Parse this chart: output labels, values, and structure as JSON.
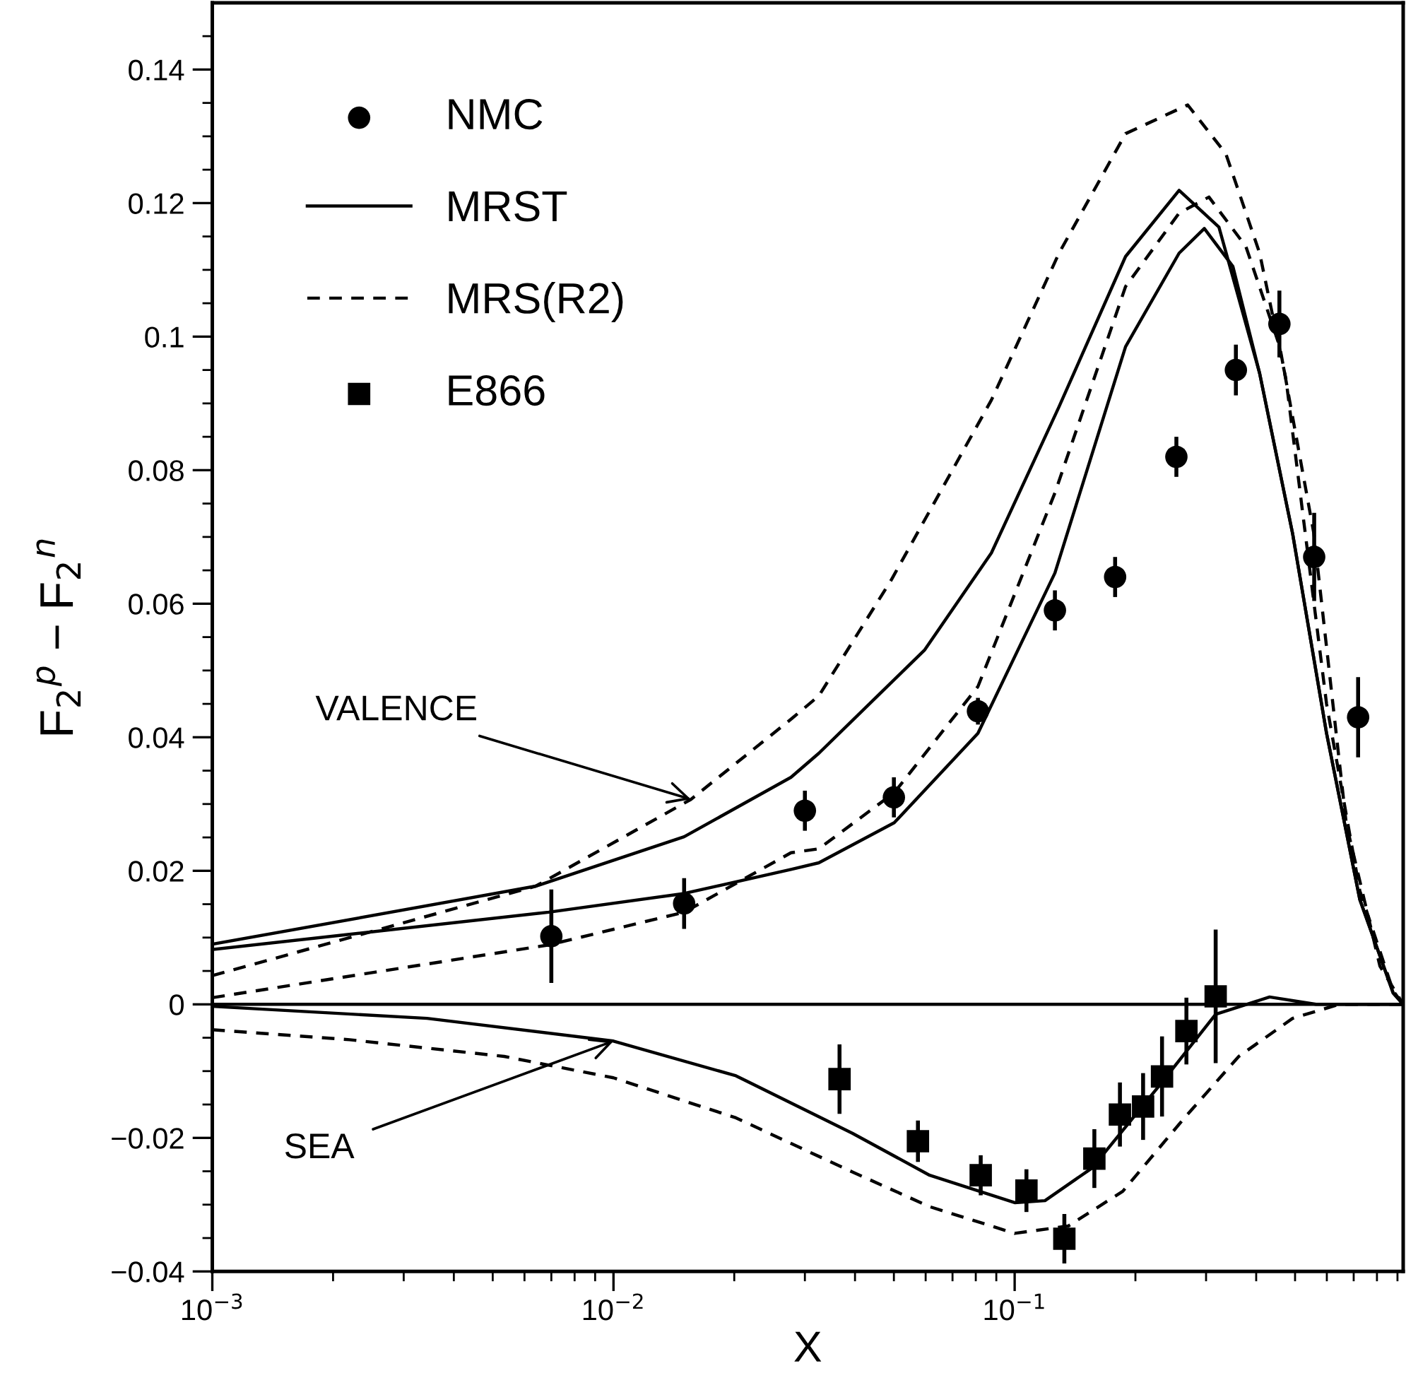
{
  "chart_data": {
    "type": "line",
    "xlabel": "X",
    "ylabel": "F$_{2}$$^{p}$ − F$_{2}$$^{n}$",
    "log": "x",
    "xlim": [
      0.001,
      0.93
    ],
    "ylim": [
      -0.04,
      0.15
    ],
    "xticks": [
      {
        "value": 0.001,
        "label": "10$^{−3}$"
      },
      {
        "value": 0.01,
        "label": "10$^{−2}$"
      },
      {
        "value": 0.1,
        "label": "10$^{−1}$"
      }
    ],
    "yticks": [
      {
        "value": -0.04,
        "label": "−0.04"
      },
      {
        "value": -0.02,
        "label": "−0.02"
      },
      0,
      0.02,
      0.04,
      0.06,
      0.08,
      0.1,
      0.12,
      0.14
    ],
    "grid": false,
    "legend": "top left",
    "ref_lines": [
      {
        "axis": "y",
        "value": 0,
        "color": "#000000",
        "line_style": "solid"
      }
    ],
    "annotations": [
      {
        "text": "VALENCE",
        "x": 0.0156,
        "y": 0.0307
      },
      {
        "text": "SEA",
        "x": 0.01,
        "y": -0.0055
      }
    ],
    "series": [
      {
        "name": "NMC",
        "type": "scatter",
        "marker": "circle",
        "color": "#000000",
        "x": [
          0.007,
          0.015,
          0.03,
          0.05,
          0.081,
          0.126,
          0.178,
          0.253,
          0.356,
          0.457,
          0.558,
          0.718
        ],
        "values": [
          0.0102,
          0.0151,
          0.029,
          0.031,
          0.0439,
          0.059,
          0.064,
          0.082,
          0.095,
          0.1019,
          0.067,
          0.043
        ],
        "errors": [
          0.007,
          0.0038,
          0.003,
          0.003,
          0.002,
          0.003,
          0.003,
          0.003,
          0.0038,
          0.005,
          0.0066,
          0.006
        ]
      },
      {
        "name": "MRST",
        "line_style": "solid",
        "color": "#000000",
        "x": [
          0.001,
          0.0064,
          0.015,
          0.0277,
          0.0325,
          0.0597,
          0.0875,
          0.129,
          0.189,
          0.257,
          0.323,
          0.408,
          0.493,
          0.599,
          0.725,
          0.878,
          0.93
        ],
        "values": [
          0.009,
          0.0177,
          0.0251,
          0.034,
          0.0376,
          0.0531,
          0.0676,
          0.0895,
          0.112,
          0.1219,
          0.1164,
          0.0945,
          0.0705,
          0.0406,
          0.0157,
          0.0017,
          0
        ]
      },
      {
        "line_style": "solid",
        "color": "#000000",
        "x": [
          0.001,
          0.0069,
          0.015,
          0.0277,
          0.0325,
          0.0501,
          0.081,
          0.126,
          0.189,
          0.257,
          0.297,
          0.35,
          0.408,
          0.493,
          0.599,
          0.725,
          0.878,
          0.93
        ],
        "values": [
          0.0082,
          0.0138,
          0.0166,
          0.0202,
          0.0212,
          0.0272,
          0.0406,
          0.0646,
          0.0985,
          0.1125,
          0.1162,
          0.1105,
          0.0945,
          0.0705,
          0.0406,
          0.0157,
          0.0017,
          0
        ]
      },
      {
        "line_style": "solid",
        "color": "#000000",
        "x": [
          0.001,
          0.00343,
          0.01,
          0.0202,
          0.0394,
          0.0614,
          0.1,
          0.119,
          0.156,
          0.232,
          0.317,
          0.432,
          0.564,
          0.93
        ],
        "values": [
          -0.0003,
          -0.0021,
          -0.0055,
          -0.0107,
          -0.0193,
          -0.0256,
          -0.0297,
          -0.0294,
          -0.0245,
          -0.0118,
          -0.0015,
          0.0011,
          0,
          0
        ]
      },
      {
        "name": "MRS(R2)",
        "line_style": "dashed",
        "color": "#000000",
        "x": [
          0.001,
          0.0064,
          0.0156,
          0.0277,
          0.0325,
          0.0493,
          0.0875,
          0.129,
          0.189,
          0.27,
          0.336,
          0.408,
          0.475,
          0.599,
          0.725,
          0.878,
          0.93
        ],
        "values": [
          0.0043,
          0.0177,
          0.0307,
          0.0427,
          0.0462,
          0.0636,
          0.0905,
          0.1125,
          0.1304,
          0.1347,
          0.1274,
          0.1125,
          0.0935,
          0.045,
          0.017,
          0.002,
          0
        ]
      },
      {
        "line_style": "dashed",
        "color": "#000000",
        "x": [
          0.001,
          0.0069,
          0.015,
          0.0277,
          0.0325,
          0.0501,
          0.081,
          0.126,
          0.189,
          0.257,
          0.305,
          0.377,
          0.458,
          0.557,
          0.671,
          0.814,
          0.93
        ],
        "values": [
          0.001,
          0.0089,
          0.0138,
          0.0227,
          0.0233,
          0.0317,
          0.0476,
          0.0766,
          0.1075,
          0.1185,
          0.1209,
          0.1135,
          0.0985,
          0.0705,
          0.027,
          0.0057,
          0
        ]
      },
      {
        "line_style": "dashed",
        "color": "#000000",
        "x": [
          0.001,
          0.0022,
          0.00534,
          0.01,
          0.0202,
          0.0394,
          0.0614,
          0.1,
          0.136,
          0.186,
          0.265,
          0.362,
          0.493,
          0.644,
          0.93
        ],
        "values": [
          -0.0038,
          -0.0053,
          -0.0078,
          -0.011,
          -0.017,
          -0.0251,
          -0.0303,
          -0.0343,
          -0.0332,
          -0.028,
          -0.017,
          -0.0078,
          -0.0021,
          0,
          0
        ]
      },
      {
        "name": "E866",
        "type": "scatter",
        "marker": "square",
        "color": "#000000",
        "x": [
          0.0366,
          0.0574,
          0.0823,
          0.107,
          0.133,
          0.158,
          0.183,
          0.209,
          0.233,
          0.268,
          0.317
        ],
        "values": [
          -0.0112,
          -0.0205,
          -0.0256,
          -0.0279,
          -0.0351,
          -0.0231,
          -0.0165,
          -0.0153,
          -0.0108,
          -0.004,
          0.0012
        ],
        "errors": [
          0.0052,
          0.0031,
          0.003,
          0.0032,
          0.0037,
          0.0044,
          0.0048,
          0.005,
          0.006,
          0.005,
          0.01
        ]
      }
    ]
  }
}
